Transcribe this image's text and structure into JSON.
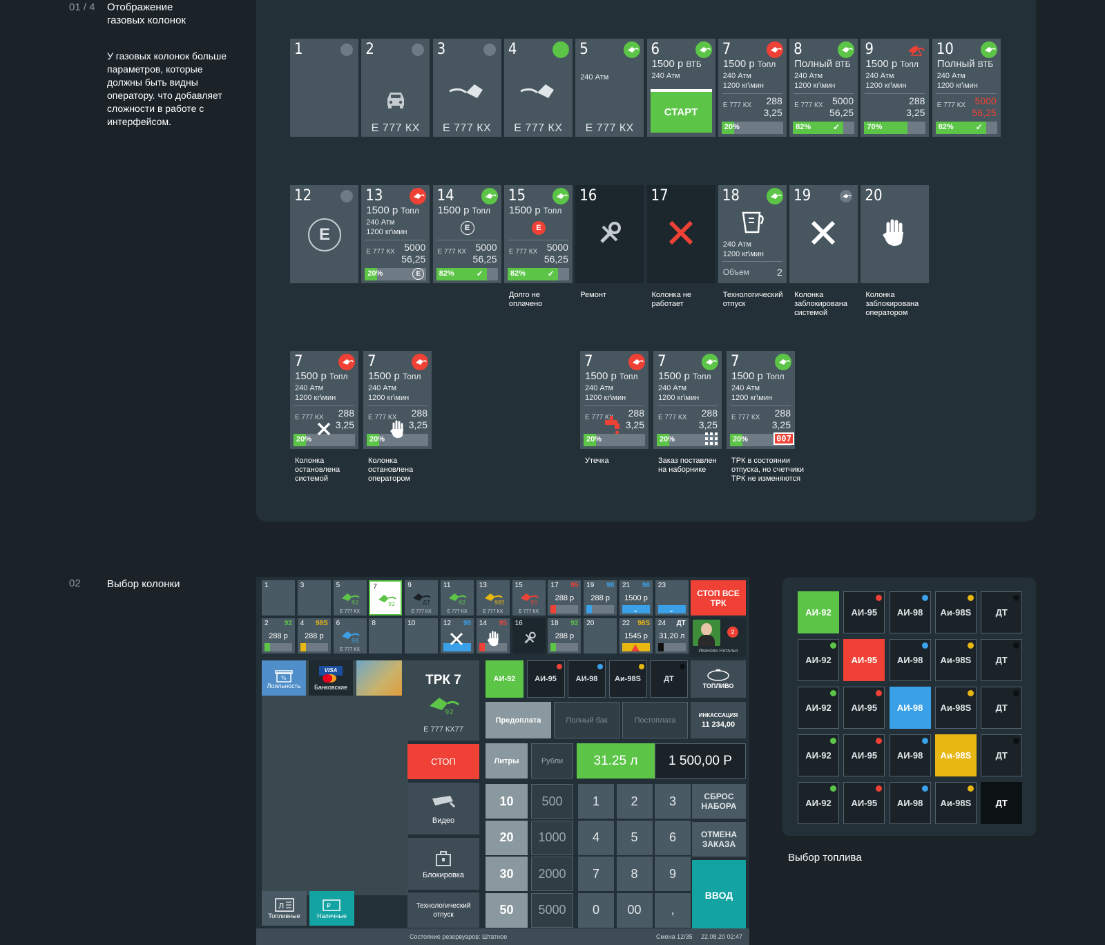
{
  "section1": {
    "number": "01 / 4",
    "title": "Отображение газовых колонок",
    "description": "У газовых колонок больше параметров, которые должны быть видны оператору. что добавляет сложности в работе с интерфейсом.",
    "row1": [
      {
        "num": "1"
      },
      {
        "num": "2",
        "plate": "Е 777 КХ"
      },
      {
        "num": "3",
        "plate": "Е 777 КХ"
      },
      {
        "num": "4",
        "plate": "Е 777 КХ"
      },
      {
        "num": "5",
        "pressure": "240 Атм",
        "plate": "Е 777 КХ"
      },
      {
        "num": "6",
        "price": "1500 р",
        "pay": "ВТБ",
        "pressure": "240 Атм",
        "start": "СТАРТ"
      },
      {
        "num": "7",
        "price": "1500 р",
        "pay": "Топл",
        "pressure": "240 Атм",
        "rate": "1200 кг\\мин",
        "plate": "Е 777 КХ",
        "v1": "288",
        "v2": "3,25",
        "progress": "20%"
      },
      {
        "num": "8",
        "price": "Полный",
        "pay": "ВТБ",
        "pressure": "240 Атм",
        "rate": "1200 кг\\мин",
        "plate": "Е 777 КХ",
        "v1": "5000",
        "v2": "56,25",
        "progress": "82%"
      },
      {
        "num": "9",
        "price": "1500 р",
        "pay": "Топл",
        "pressure": "240 Атм",
        "rate": "1200 кг\\мин",
        "v1": "288",
        "v2": "3,25",
        "progress": "70%"
      },
      {
        "num": "10",
        "price": "Полный",
        "pay": "ВТБ",
        "pressure": "240 Атм",
        "rate": "1200 кг\\мин",
        "plate": "Е 777 КХ",
        "v1": "5000",
        "v2": "56,25",
        "progress": "82%"
      }
    ],
    "row2": [
      {
        "num": "12",
        "badge": "E"
      },
      {
        "num": "13",
        "price": "1500 р",
        "pay": "Топл",
        "pressure": "240 Атм",
        "rate": "1200 кг\\мин",
        "plate": "Е 777 КХ",
        "v1": "5000",
        "v2": "56,25",
        "progress": "20%"
      },
      {
        "num": "14",
        "price": "1500 р",
        "pay": "Топл",
        "badge": "E",
        "plate": "Е 777 КХ",
        "v1": "5000",
        "v2": "56,25",
        "progress": "82%"
      },
      {
        "num": "15",
        "price": "1500 р",
        "pay": "Топл",
        "badge": "E",
        "plate": "Е 777 КХ",
        "v1": "5000",
        "v2": "56,25",
        "progress": "82%",
        "caption": "Долго не оплачено"
      },
      {
        "num": "16",
        "caption": "Ремонт"
      },
      {
        "num": "17",
        "caption": "Колонка не работает"
      },
      {
        "num": "18",
        "pressure": "240 Атм",
        "rate": "1200 кг\\мин",
        "volume_label": "Объем",
        "volume": "2",
        "caption": "Технологический отпуск"
      },
      {
        "num": "19",
        "caption": "Колонка заблокирована системой"
      },
      {
        "num": "20",
        "caption": "Колонка заблокирована оператором"
      }
    ],
    "row3": [
      {
        "num": "7",
        "price": "1500 р",
        "pay": "Топл",
        "pressure": "240 Атм",
        "rate": "1200 кг\\мин",
        "plate": "Е 777 КХ",
        "v1": "288",
        "v2": "3,25",
        "progress": "20%",
        "caption": "Колонка остановлена системой"
      },
      {
        "num": "7",
        "price": "1500 р",
        "pay": "Топл",
        "pressure": "240 Атм",
        "rate": "1200 кг\\мин",
        "plate": "Е 777 КХ",
        "v1": "288",
        "v2": "3,25",
        "progress": "20%",
        "caption": "Колонка остановлена оператором"
      },
      {
        "num": "7",
        "price": "1500 р",
        "pay": "Топл",
        "pressure": "240 Атм",
        "rate": "1200 кг\\мин",
        "plate": "Е 777 КХ",
        "v1": "288",
        "v2": "3,25",
        "progress": "20%",
        "caption": "Утечка"
      },
      {
        "num": "7",
        "price": "1500 р",
        "pay": "Топл",
        "pressure": "240 Атм",
        "rate": "1200 кг\\мин",
        "plate": "Е 777 КХ",
        "v1": "288",
        "v2": "3,25",
        "progress": "20%",
        "caption": "Заказ поставлен на наборнике"
      },
      {
        "num": "7",
        "price": "1500 р",
        "pay": "Топл",
        "pressure": "240 Атм",
        "rate": "1200 кг\\мин",
        "plate": "Е 777 КХ",
        "v1": "288",
        "v2": "3,25",
        "progress": "20%",
        "caption": "ТРК в состоянии отпуска, но счетчики ТРК не изменяются",
        "counter": "007"
      }
    ]
  },
  "section2": {
    "number": "02",
    "title": "Выбор колонки",
    "pumps_top": [
      {
        "n": "1"
      },
      {
        "n": "3"
      },
      {
        "n": "5",
        "fuel": "92",
        "plate": "Е 777 КХ"
      },
      {
        "n": "7",
        "fuel": "92"
      },
      {
        "n": "9",
        "fuel": "ДТ",
        "plate": "Е 777 КХ"
      },
      {
        "n": "11",
        "fuel": "92",
        "plate": "Е 777 КХ"
      },
      {
        "n": "13",
        "fuel": "98S",
        "plate": "Е 777 КХ"
      },
      {
        "n": "15",
        "fuel": "95",
        "plate": "Е 777 КХ"
      },
      {
        "n": "17",
        "ft": "95",
        "val": "288 р"
      },
      {
        "n": "19",
        "ft": "98",
        "val": "288 р"
      },
      {
        "n": "21",
        "ft": "98",
        "val": "1500 р"
      },
      {
        "n": "23"
      }
    ],
    "pumps_bottom": [
      {
        "n": "2",
        "ft": "92",
        "val": "288 р"
      },
      {
        "n": "4",
        "ft": "98S",
        "val": "288 р"
      },
      {
        "n": "6",
        "fuel": "98",
        "plate": "Е 777 КХ"
      },
      {
        "n": "8"
      },
      {
        "n": "10"
      },
      {
        "n": "12",
        "ft": "98"
      },
      {
        "n": "14",
        "ft": "95"
      },
      {
        "n": "16"
      },
      {
        "n": "18",
        "ft": "92",
        "val": "288 р"
      },
      {
        "n": "20"
      },
      {
        "n": "22",
        "ft": "98S",
        "val": "1545 р"
      },
      {
        "n": "24",
        "ft": "ДТ",
        "val": "31,20 л"
      }
    ],
    "stop_all": "СТОП ВСЕ ТРК",
    "operator_name": "Иванова Наталья",
    "notifications": "2",
    "loyalty": "Лояльность",
    "bank": "Банковские",
    "trk_title": "ТРК 7",
    "trk_fuel": "92",
    "trk_plate": "Е 777 КХ77",
    "stop": "СТОП",
    "video": "Видео",
    "lock": "Блокировка",
    "tech": "Технологический отпуск",
    "fuel_cards": "Топливные",
    "cash": "Наличные",
    "fuel_tabs": [
      "АИ-92",
      "АИ-95",
      "АИ-98",
      "Аи-98S",
      "ДТ"
    ],
    "fuel_btn": "ТОПЛИВО",
    "modes": [
      "Предоплата",
      "Полный бак",
      "Постоплата"
    ],
    "collection_label": "ИНКАССАЦИЯ",
    "collection_value": "11 234,00",
    "units": [
      "Литры",
      "Рубли"
    ],
    "liters": "31.25 л",
    "rubles": "1 500,00 Р",
    "presets_l": [
      "10",
      "20",
      "30",
      "50"
    ],
    "presets_r": [
      "500",
      "1000",
      "2000",
      "5000"
    ],
    "keys": [
      "1",
      "2",
      "3",
      "4",
      "5",
      "6",
      "7",
      "8",
      "9",
      "0",
      "00",
      ","
    ],
    "reset": "СБРОС НАБОРА",
    "cancel": "ОТМЕНА ЗАКАЗА",
    "enter": "ВВОД",
    "status": "Состояние резервуаров: Штатное",
    "shift": "Смена 12/35",
    "datetime": "22.08.20 02:47"
  },
  "fuel_select": {
    "caption": "Выбор топлива",
    "labels": [
      "АИ-92",
      "АИ-95",
      "АИ-98",
      "Аи-98S",
      "ДТ"
    ],
    "colors": {
      "ai92": "#5cc547",
      "ai95": "#ef4135",
      "ai98": "#3aa0e8",
      "ai98s": "#e8b712",
      "dt": "#0c1114"
    }
  }
}
